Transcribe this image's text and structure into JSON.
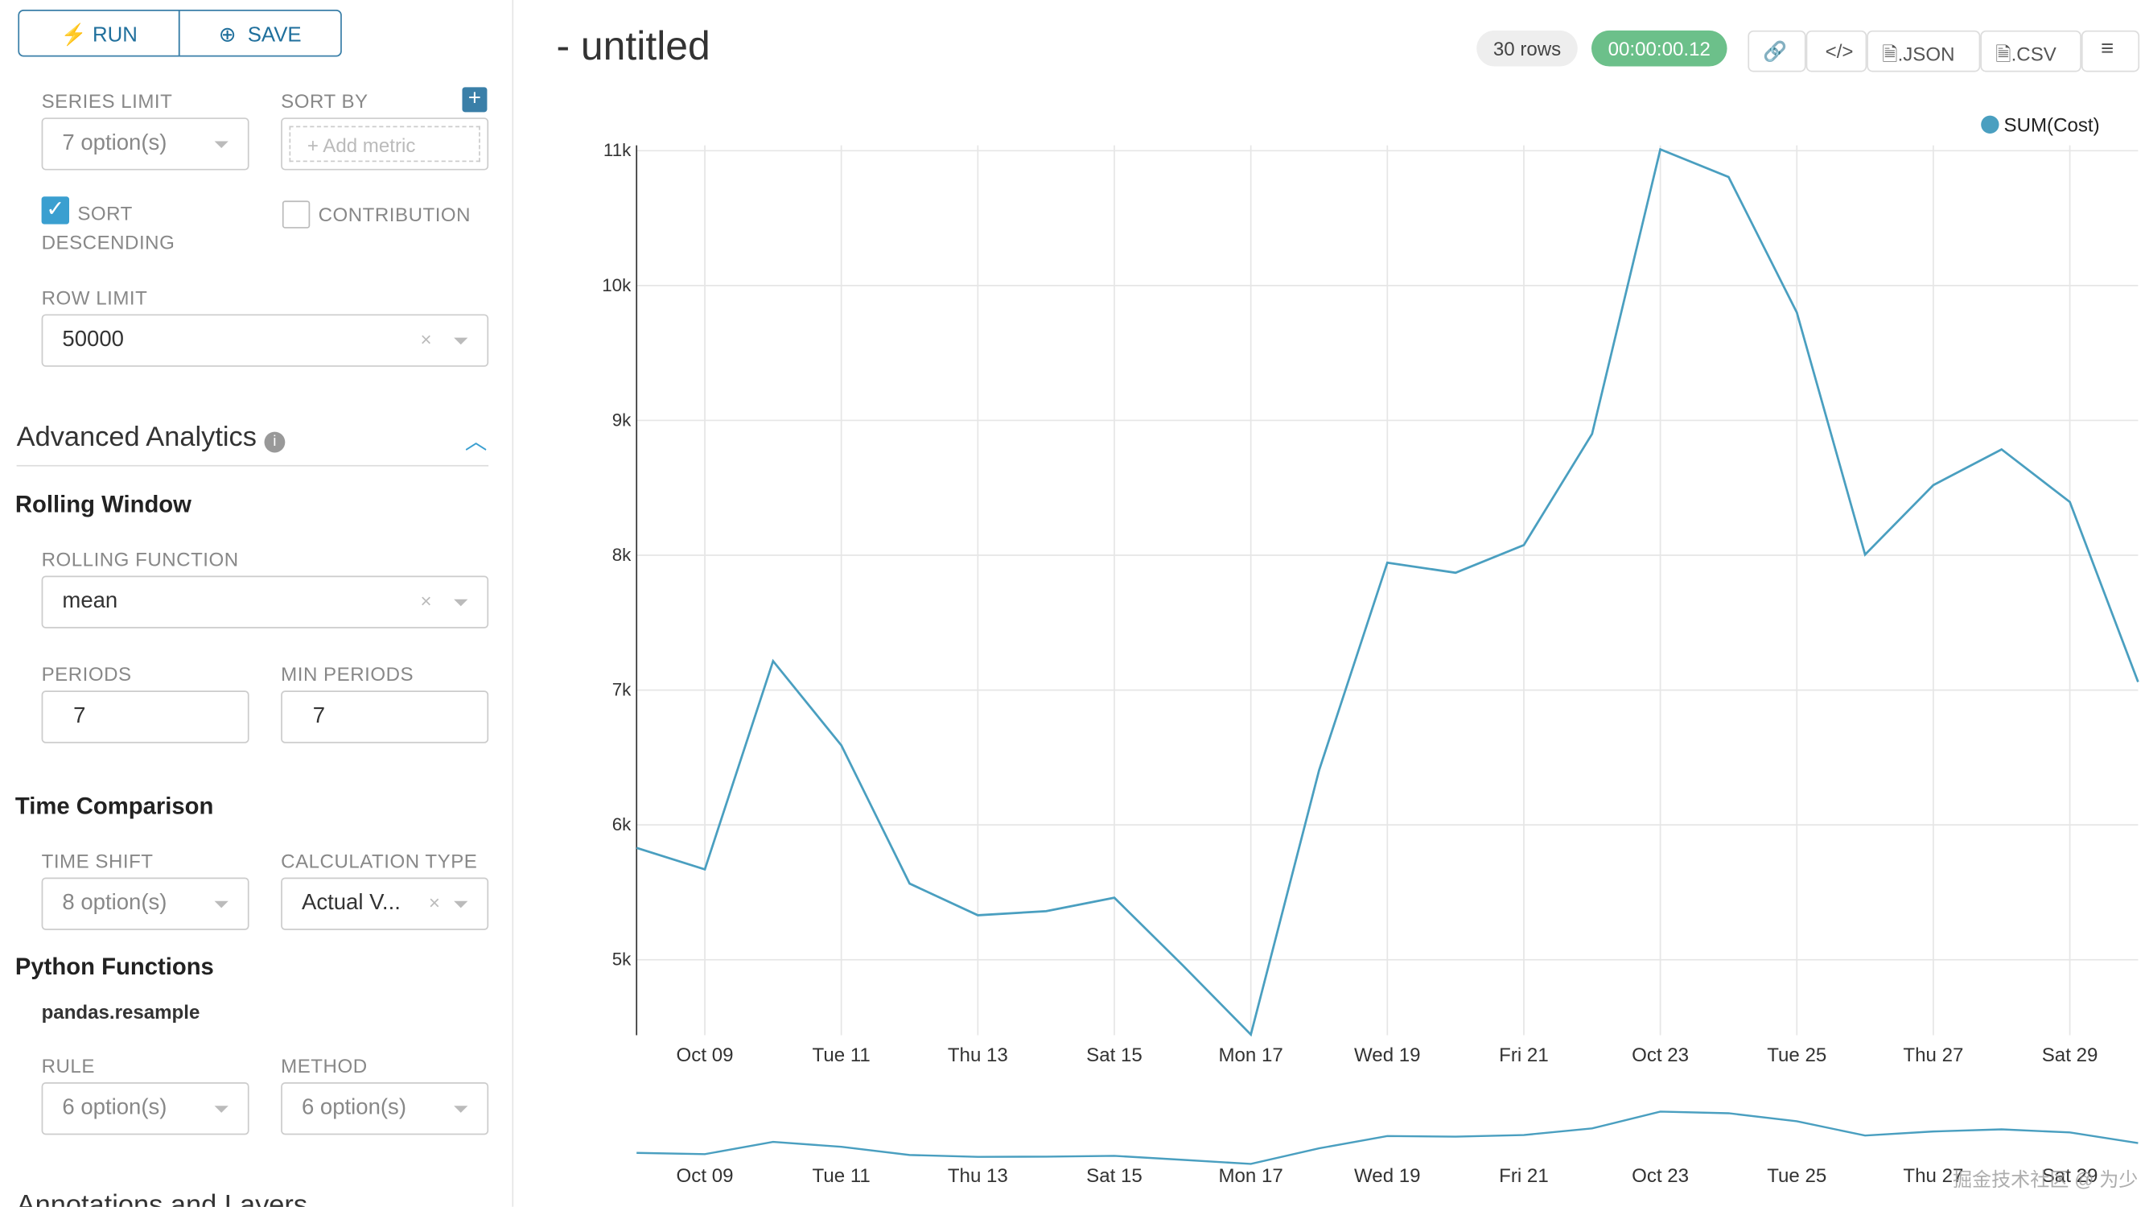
{
  "toolbar": {
    "run": "RUN",
    "save": "SAVE"
  },
  "controls": {
    "series_limit": {
      "label": "SERIES LIMIT",
      "value": "7 option(s)"
    },
    "sort_by": {
      "label": "SORT BY",
      "placeholder": "Add metric"
    },
    "sort_descending": "SORT DESCENDING",
    "contribution": "CONTRIBUTION",
    "row_limit": {
      "label": "ROW LIMIT",
      "value": "50000"
    },
    "advanced_analytics": "Advanced Analytics",
    "rolling_window": "Rolling Window",
    "rolling_function": {
      "label": "ROLLING FUNCTION",
      "value": "mean"
    },
    "periods": {
      "label": "PERIODS",
      "value": "7"
    },
    "min_periods": {
      "label": "MIN PERIODS",
      "value": "7"
    },
    "time_comparison": "Time Comparison",
    "time_shift": {
      "label": "TIME SHIFT",
      "value": "8 option(s)"
    },
    "calculation_type": {
      "label": "CALCULATION TYPE",
      "value": "Actual V..."
    },
    "python_functions": "Python Functions",
    "pandas_resample": "pandas.resample",
    "rule": {
      "label": "RULE",
      "value": "6 option(s)"
    },
    "method": {
      "label": "METHOD",
      "value": "6 option(s)"
    },
    "annotations": "Annotations and Layers"
  },
  "header": {
    "title": "- untitled",
    "rows": "30 rows",
    "duration": "00:00:00.12",
    "json": ".JSON",
    "csv": ".CSV"
  },
  "watermark": "掘金技术社区 @ 为少",
  "chart_data": {
    "type": "line",
    "categories": [
      null,
      "Oct 09",
      null,
      "Tue 11",
      null,
      "Thu 13",
      null,
      "Sat 15",
      null,
      "Mon 17",
      null,
      "Wed 19",
      null,
      "Fri 21",
      null,
      "Oct 23",
      null,
      "Tue 25",
      null,
      "Thu 27",
      null,
      "Sat 29",
      null
    ],
    "series": [
      {
        "name": "SUM(Cost)",
        "color": "#4a9fc0",
        "values": [
          5830,
          5670,
          7215,
          6590,
          5565,
          5330,
          5360,
          5460,
          4960,
          4445,
          6405,
          7945,
          7870,
          8075,
          8900,
          11010,
          10805,
          9800,
          8005,
          8520,
          8785,
          8395,
          7060
        ]
      }
    ],
    "ylim": [
      4440,
      11040
    ],
    "yticks": [
      {
        "value": 5000,
        "label": "5k"
      },
      {
        "value": 6000,
        "label": "6k"
      },
      {
        "value": 7000,
        "label": "7k"
      },
      {
        "value": 8000,
        "label": "8k"
      },
      {
        "value": 9000,
        "label": "9k"
      },
      {
        "value": 10000,
        "label": "10k"
      },
      {
        "value": 11000,
        "label": "11k"
      }
    ],
    "grid": true,
    "legend": "top-right"
  }
}
